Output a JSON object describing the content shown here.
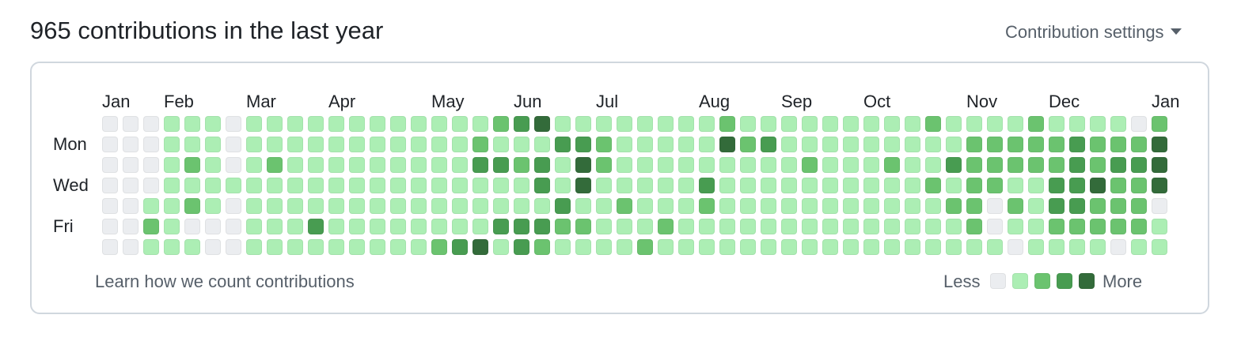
{
  "header": {
    "title": "965 contributions in the last year",
    "settings_label": "Contribution settings"
  },
  "months": [
    "Jan",
    "Feb",
    "Mar",
    "Apr",
    "May",
    "Jun",
    "Jul",
    "Aug",
    "Sep",
    "Oct",
    "Nov",
    "Dec",
    "Jan"
  ],
  "day_labels": [
    "Mon",
    "Wed",
    "Fri"
  ],
  "colors": {
    "level0": "#ebedf0",
    "level1": "#aceeb4",
    "level2": "#6bc36f",
    "level3": "#489c51",
    "level4": "#336b3a"
  },
  "grid": [
    "0001110111111111111234111111112111111111211112111102",
    "0001110111111111112111332111114231111111112222232224",
    "0001210121111111113323142111111111211121132222232334",
    "0001111111111111111113141111131111111111212211334224",
    "0011210111111111111111311211121111111111122021332220",
    "0021000111311111111333221112111111111111112011222221",
    "0011100111111111234132111121111111111111111101111011"
  ],
  "footer": {
    "learn_link": "Learn how we count contributions",
    "legend_less": "Less",
    "legend_more": "More"
  }
}
